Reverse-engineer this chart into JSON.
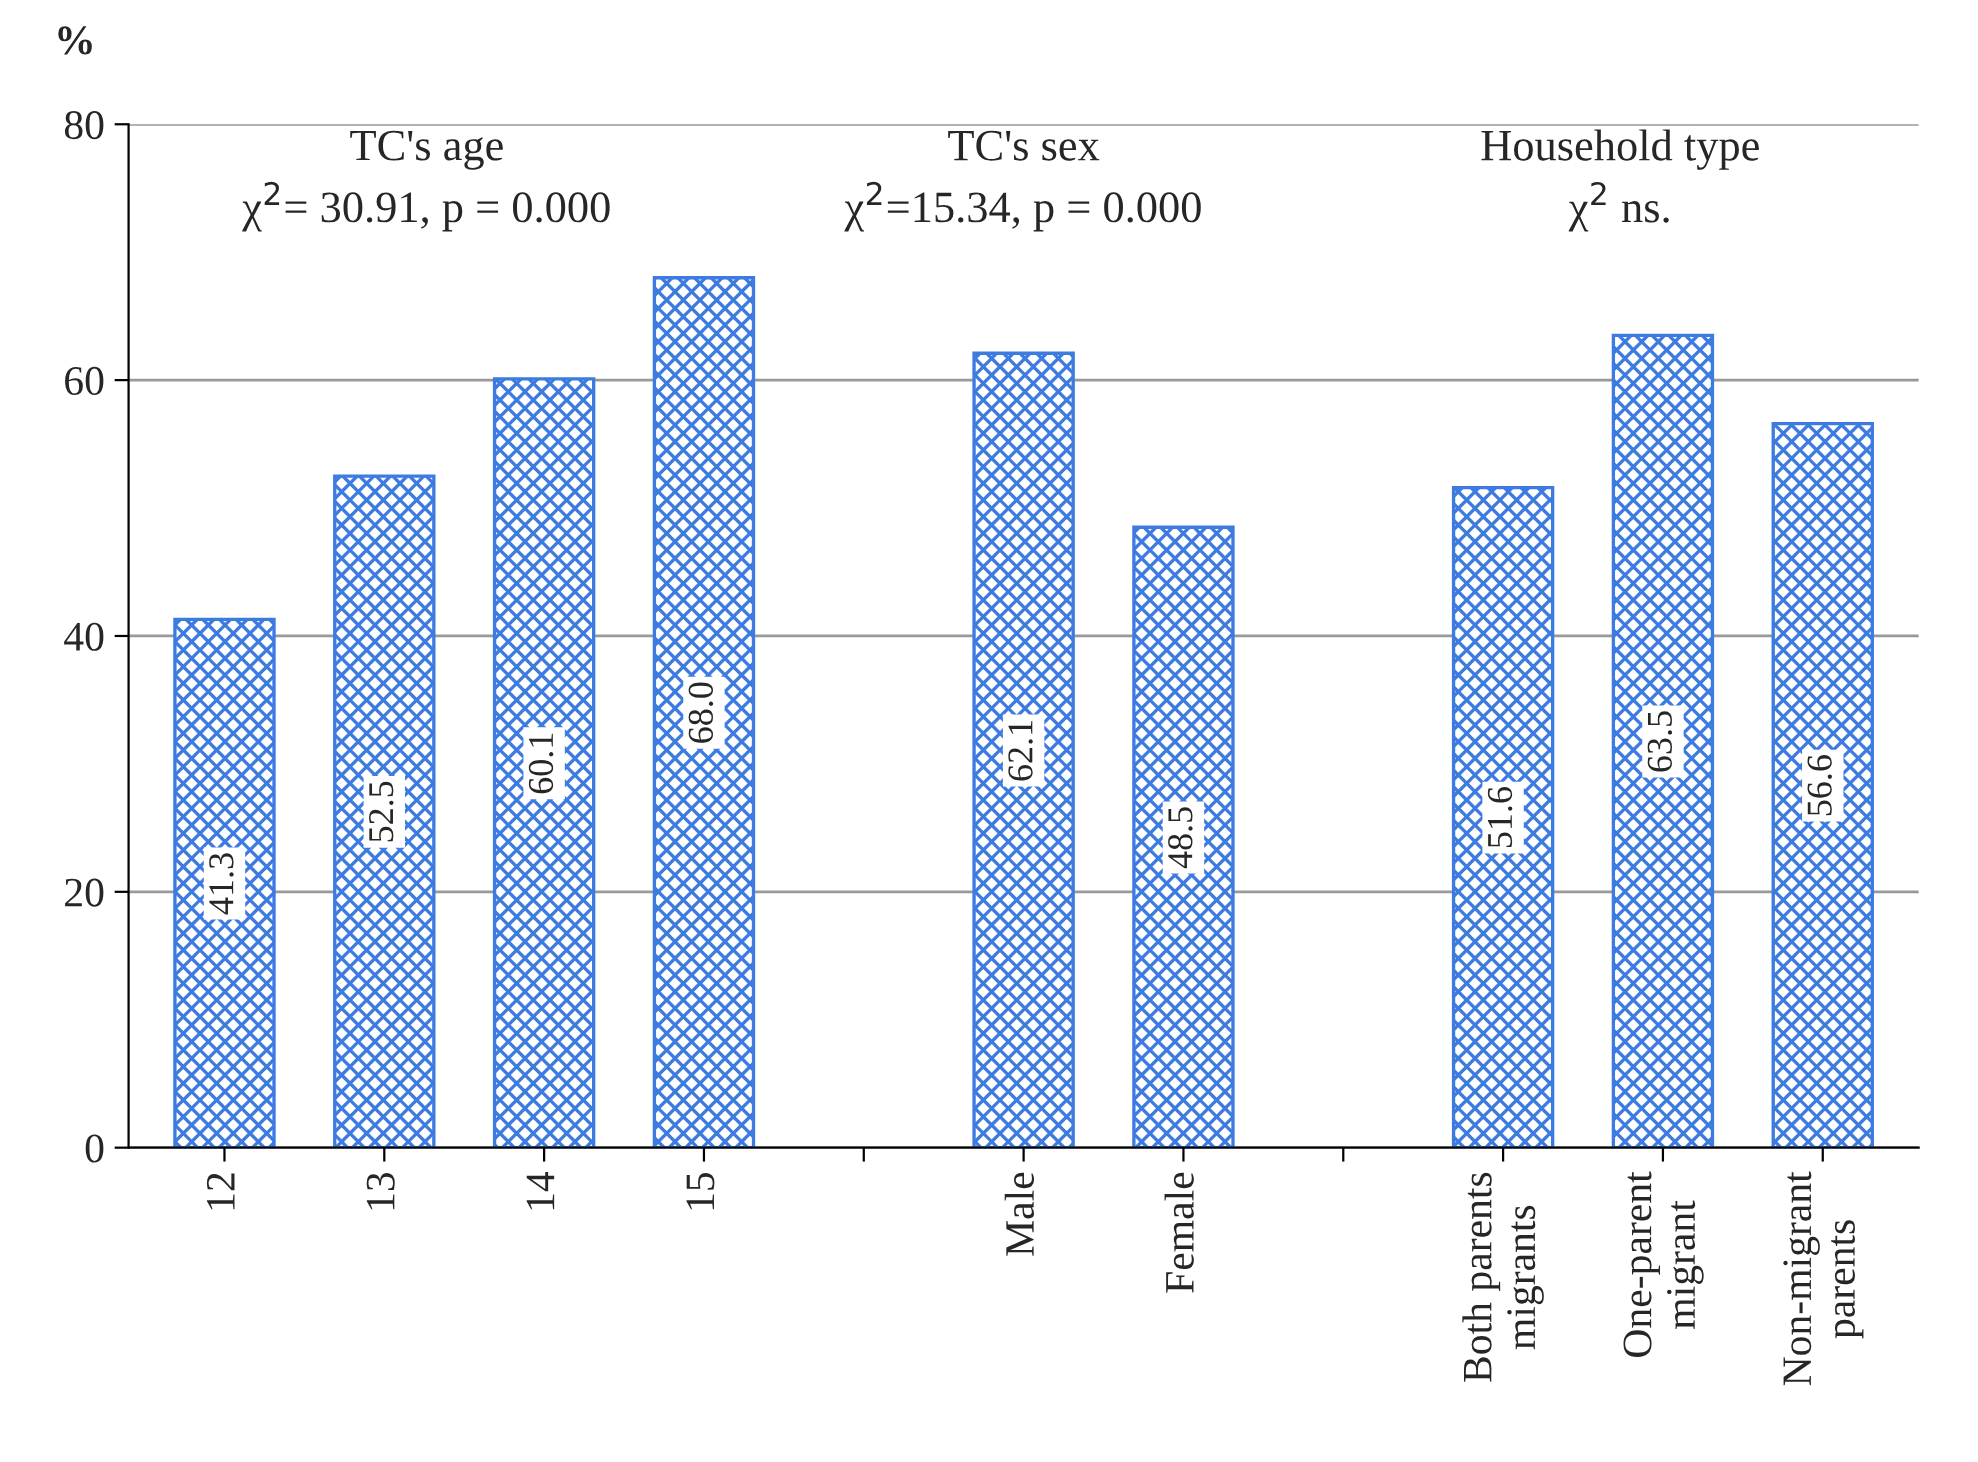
{
  "chart_data": {
    "type": "bar",
    "ylabel": "%",
    "categories": [
      "12",
      "13",
      "14",
      "15",
      null,
      "Male",
      "Female",
      null,
      "Both parents\nmigrants",
      "One-parent\nmigrant",
      "Non-migrant\nparents"
    ],
    "values": [
      41.3,
      52.5,
      60.1,
      68.0,
      null,
      62.1,
      48.5,
      null,
      51.6,
      63.5,
      56.6
    ],
    "color": "#3d7be0",
    "value_labels": [
      "41.3",
      "52.5",
      "60.1",
      "68.0",
      null,
      "62.1",
      "48.5",
      null,
      "51.6",
      "63.5",
      "56.6"
    ],
    "ylim": [
      0,
      80
    ],
    "yticks": [
      0,
      20,
      40,
      60,
      80
    ],
    "grid": "y",
    "annotations": [
      "TC's age\nχ$^{2}$= 30.91, p = 0.000",
      "TC's sex\nχ$^{2}$=15.34, p = 0.000",
      "Household type\nχ$^{2}$ ns."
    ]
  }
}
